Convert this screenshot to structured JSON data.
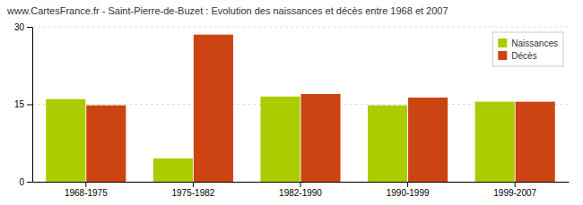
{
  "chart_data": {
    "type": "bar",
    "title": "www.CartesFrance.fr - Saint-Pierre-de-Buzet : Evolution des naissances et décès entre 1968 et 2007",
    "categories": [
      "1968-1975",
      "1975-1982",
      "1982-1990",
      "1990-1999",
      "1999-2007"
    ],
    "series": [
      {
        "name": "Naissances",
        "color": "#aacc00",
        "values": [
          16.0,
          4.5,
          16.5,
          14.8,
          15.5
        ]
      },
      {
        "name": "Décès",
        "color": "#cc4411",
        "values": [
          14.8,
          28.5,
          17.0,
          16.3,
          15.5
        ]
      }
    ],
    "ylim": [
      0,
      30
    ],
    "yticks": [
      0,
      15,
      30
    ],
    "grid": true,
    "legend": "upper right"
  }
}
